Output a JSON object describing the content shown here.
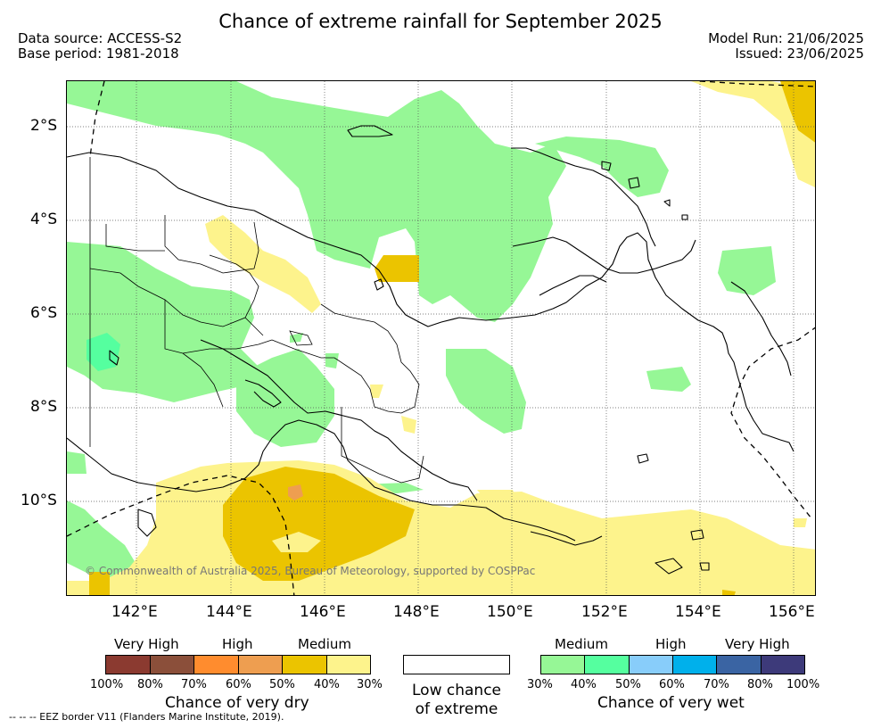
{
  "title": "Chance of extreme rainfall for September 2025",
  "data_source": "Data source: ACCESS-S2",
  "base_period": "Base period: 1981-2018",
  "model_run": "Model Run: 21/06/2025",
  "issued": "Issued: 23/06/2025",
  "lat_ticks": [
    "2°S",
    "4°S",
    "6°S",
    "8°S",
    "10°S"
  ],
  "lon_ticks": [
    "142°E",
    "144°E",
    "146°E",
    "148°E",
    "150°E",
    "152°E",
    "154°E",
    "156°E"
  ],
  "credit": "© Commonwealth of Australia 2025, Bureau of Meteorology, supported by COSPPac",
  "legend_dry": {
    "levels": [
      "Very High",
      "High",
      "Medium"
    ],
    "percents": [
      "100%",
      "80%",
      "70%",
      "60%",
      "50%",
      "40%",
      "30%"
    ],
    "caption": "Chance of very dry",
    "colors": [
      "#8b3a30",
      "#8b4f3a",
      "#ff8c2e",
      "#ee9e50",
      "#ebc400",
      "#fdf38c"
    ]
  },
  "legend_low": {
    "caption_line1": "Low chance",
    "caption_line2": "of extreme",
    "color": "#ffffff"
  },
  "legend_wet": {
    "levels": [
      "Medium",
      "High",
      "Very High"
    ],
    "percents": [
      "30%",
      "40%",
      "50%",
      "60%",
      "70%",
      "80%",
      "100%"
    ],
    "caption": "Chance of very wet",
    "colors": [
      "#96f796",
      "#55ff9f",
      "#88cdfa",
      "#00b0eb",
      "#3a64a3",
      "#3d3a7a"
    ]
  },
  "eez_note": "--  --  -- EEZ border V11 (Flanders Marine Institute, 2019)."
}
